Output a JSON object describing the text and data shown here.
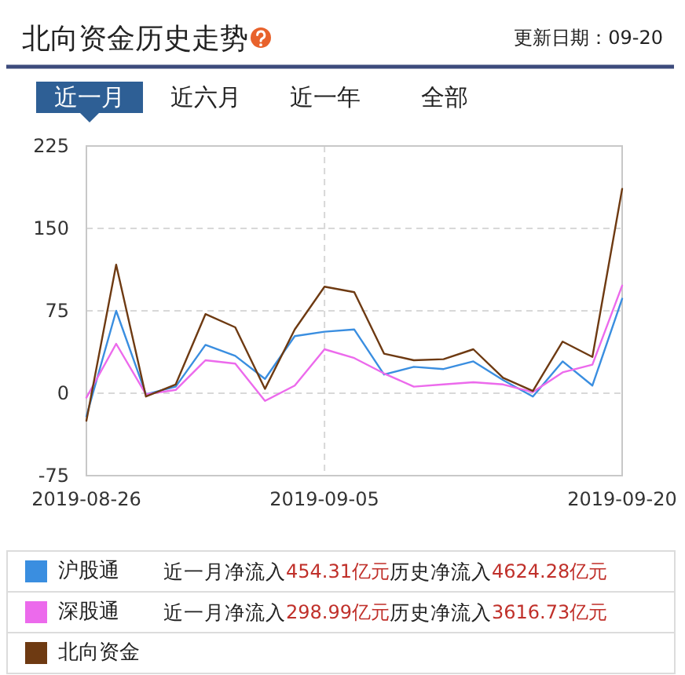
{
  "chart_data": {
    "type": "line",
    "title": "北向资金历史走势",
    "categories": [
      "2019-08-26",
      null,
      null,
      null,
      null,
      null,
      null,
      null,
      "2019-09-05",
      null,
      null,
      null,
      null,
      null,
      null,
      null,
      null,
      null,
      "2019-09-20"
    ],
    "series": [
      {
        "name": "沪股通",
        "color": "#3a8ee0",
        "values": [
          -21,
          75,
          -1,
          6,
          44,
          34,
          13,
          52,
          56,
          58,
          17,
          24,
          22,
          29,
          12,
          -3,
          29,
          7,
          86
        ]
      },
      {
        "name": "深股通",
        "color": "#ec6aec",
        "values": [
          -4,
          45,
          -1,
          3,
          30,
          27,
          -7,
          7,
          40,
          32,
          18,
          6,
          8,
          10,
          8,
          1,
          19,
          26,
          98
        ]
      },
      {
        "name": "北向资金",
        "color": "#6e3a12",
        "values": [
          -25,
          117,
          -3,
          8,
          72,
          60,
          4,
          58,
          97,
          92,
          36,
          30,
          31,
          40,
          14,
          2,
          47,
          33,
          186
        ]
      }
    ],
    "ylim": [
      -75,
      225
    ],
    "yticks": [
      -75,
      0,
      75,
      150,
      225
    ],
    "grid": true,
    "legend": "bottom",
    "annotations": [
      "更新日期：09-20",
      "近一月",
      "近六月",
      "近一年",
      "全部",
      "近一月净流入",
      "454.31亿元",
      "历史净流入",
      "4624.28亿元",
      "近一月净流入",
      "298.99亿元",
      "历史净流入",
      "3616.73亿元"
    ]
  }
}
